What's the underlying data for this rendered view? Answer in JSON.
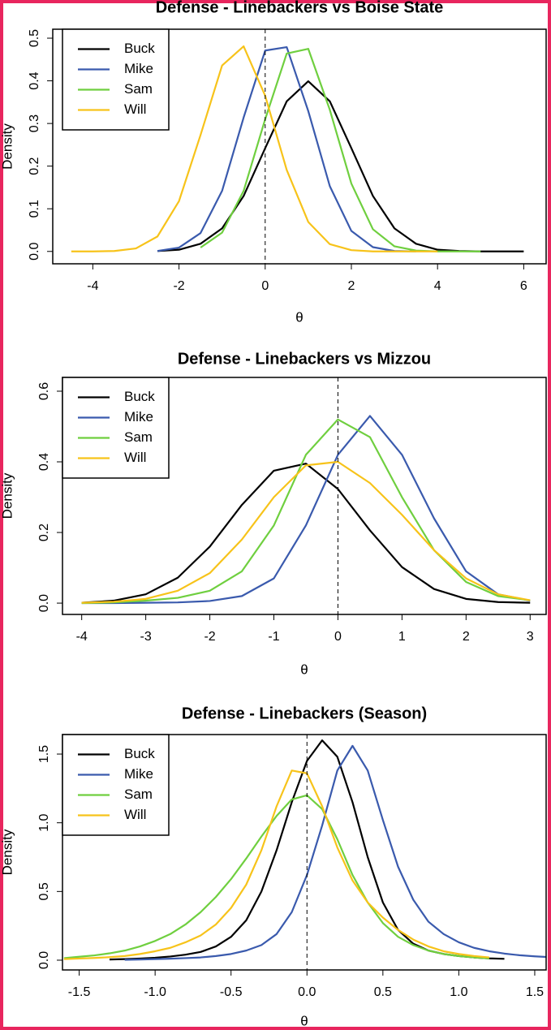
{
  "chart_data": [
    {
      "type": "line",
      "title": "Defense - Linebackers vs Boise State",
      "xlabel": "θ",
      "ylabel": "Density",
      "x": [
        -4.5,
        -4,
        -3.5,
        -3,
        -2.5,
        -2,
        -1.5,
        -1,
        -0.5,
        0,
        0.5,
        1,
        1.5,
        2,
        2.5,
        3,
        3.5,
        4,
        4.5,
        5,
        5.5,
        6
      ],
      "series": [
        {
          "name": "Buck",
          "color": "#000000",
          "values": [
            null,
            null,
            null,
            null,
            0.001,
            0.004,
            0.018,
            0.054,
            0.13,
            0.242,
            0.352,
            0.399,
            0.352,
            0.242,
            0.13,
            0.054,
            0.018,
            0.004,
            0.001,
            0,
            0,
            0
          ]
        },
        {
          "name": "Mike",
          "color": "#3a5aad",
          "values": [
            null,
            null,
            null,
            null,
            0.001,
            0.009,
            0.043,
            0.142,
            0.314,
            0.471,
            0.479,
            0.329,
            0.153,
            0.048,
            0.01,
            0.001,
            0,
            null,
            null,
            null,
            null,
            null
          ]
        },
        {
          "name": "Sam",
          "color": "#6fcf3f",
          "values": [
            null,
            null,
            null,
            null,
            null,
            null,
            0.009,
            0.044,
            0.142,
            0.31,
            0.464,
            0.475,
            0.332,
            0.159,
            0.052,
            0.012,
            0.002,
            0,
            0,
            0,
            null,
            null
          ]
        },
        {
          "name": "Will",
          "color": "#f7c31a",
          "values": [
            0,
            0,
            0.001,
            0.007,
            0.035,
            0.118,
            0.273,
            0.436,
            0.481,
            0.365,
            0.191,
            0.069,
            0.017,
            0.003,
            0,
            0,
            0,
            0,
            null,
            null,
            null,
            null
          ]
        }
      ],
      "xlim": [
        -4.93,
        6.52
      ],
      "ylim": [
        -0.029,
        0.521
      ],
      "xticks": [
        -4,
        -2,
        0,
        2,
        4,
        6
      ],
      "yticks": [
        {
          "value": 0,
          "label": "0.0"
        },
        0.1,
        0.2,
        0.3,
        0.4,
        0.5
      ],
      "vline": 0,
      "legend": "top-left"
    },
    {
      "type": "line",
      "title": "Defense - Linebackers vs Mizzou",
      "xlabel": "θ",
      "ylabel": "Density",
      "x": [
        -4,
        -3.5,
        -3,
        -2.5,
        -2,
        -1.5,
        -1,
        -0.5,
        0,
        0.5,
        1,
        1.5,
        2,
        2.5,
        3
      ],
      "series": [
        {
          "name": "Buck",
          "color": "#000000",
          "values": [
            0.001,
            0.007,
            0.025,
            0.072,
            0.16,
            0.278,
            0.375,
            0.395,
            0.323,
            0.206,
            0.102,
            0.04,
            0.012,
            0.003,
            0.001
          ]
        },
        {
          "name": "Mike",
          "color": "#3a5aad",
          "values": [
            0,
            0,
            0.001,
            0.002,
            0.006,
            0.02,
            0.07,
            0.22,
            0.42,
            0.53,
            0.42,
            0.24,
            0.09,
            0.025,
            0.007
          ]
        },
        {
          "name": "Sam",
          "color": "#6fcf3f",
          "values": [
            0,
            0.002,
            0.007,
            0.015,
            0.035,
            0.09,
            0.22,
            0.42,
            0.52,
            0.47,
            0.3,
            0.15,
            0.06,
            0.02,
            0.008
          ]
        },
        {
          "name": "Will",
          "color": "#f7c31a",
          "values": [
            0.001,
            0.004,
            0.012,
            0.035,
            0.085,
            0.18,
            0.3,
            0.39,
            0.4,
            0.34,
            0.25,
            0.15,
            0.07,
            0.025,
            0.008
          ]
        }
      ],
      "xlim": [
        -4.3,
        3.25
      ],
      "ylim": [
        -0.032,
        0.639
      ],
      "xticks": [
        -4,
        -3,
        -2,
        -1,
        0,
        1,
        2,
        3
      ],
      "yticks": [
        {
          "value": 0,
          "label": "0.0"
        },
        0.2,
        0.4,
        0.6
      ],
      "vline": 0,
      "legend": "top-left"
    },
    {
      "type": "line",
      "title": "Defense - Linebackers (Season)",
      "xlabel": "θ",
      "ylabel": "Density",
      "x": [
        -1.6,
        -1.5,
        -1.4,
        -1.3,
        -1.2,
        -1.1,
        -1.0,
        -0.9,
        -0.8,
        -0.7,
        -0.6,
        -0.5,
        -0.4,
        -0.3,
        -0.2,
        -0.1,
        0,
        0.1,
        0.2,
        0.3,
        0.4,
        0.5,
        0.6,
        0.7,
        0.8,
        0.9,
        1.0,
        1.1,
        1.2,
        1.3,
        1.4,
        1.5,
        1.6
      ],
      "series": [
        {
          "name": "Buck",
          "color": "#000000",
          "values": [
            null,
            null,
            null,
            0.005,
            0.008,
            0.012,
            0.018,
            0.027,
            0.04,
            0.06,
            0.1,
            0.17,
            0.29,
            0.5,
            0.8,
            1.15,
            1.45,
            1.6,
            1.48,
            1.15,
            0.75,
            0.42,
            0.22,
            0.12,
            0.07,
            0.045,
            0.03,
            0.02,
            0.013,
            0.01,
            null,
            null,
            null
          ]
        },
        {
          "name": "Mike",
          "color": "#3a5aad",
          "values": [
            null,
            null,
            null,
            null,
            0.003,
            0.005,
            0.008,
            0.011,
            0.015,
            0.02,
            0.03,
            0.045,
            0.07,
            0.11,
            0.19,
            0.35,
            0.62,
            0.98,
            1.38,
            1.56,
            1.38,
            1.02,
            0.68,
            0.44,
            0.28,
            0.19,
            0.13,
            0.09,
            0.065,
            0.048,
            0.036,
            0.028,
            0.022
          ]
        },
        {
          "name": "Sam",
          "color": "#6fcf3f",
          "values": [
            0.015,
            0.025,
            0.035,
            0.05,
            0.07,
            0.1,
            0.14,
            0.19,
            0.26,
            0.35,
            0.46,
            0.59,
            0.74,
            0.9,
            1.05,
            1.17,
            1.2,
            1.1,
            0.88,
            0.62,
            0.42,
            0.27,
            0.17,
            0.11,
            0.07,
            0.045,
            0.03,
            0.02,
            0.013,
            null,
            null,
            null,
            null
          ]
        },
        {
          "name": "Will",
          "color": "#f7c31a",
          "values": [
            0.008,
            0.012,
            0.016,
            0.022,
            0.03,
            0.045,
            0.065,
            0.09,
            0.13,
            0.18,
            0.26,
            0.38,
            0.55,
            0.8,
            1.12,
            1.38,
            1.36,
            1.12,
            0.82,
            0.58,
            0.42,
            0.31,
            0.22,
            0.15,
            0.1,
            0.065,
            0.045,
            0.03,
            0.02,
            null,
            null,
            null,
            null
          ]
        }
      ],
      "xlim": [
        -1.61,
        1.575
      ],
      "ylim": [
        -0.071,
        1.642
      ],
      "xticks": [
        -1.5,
        {
          "value": -1,
          "label": "-1.0"
        },
        -0.5,
        {
          "value": 0,
          "label": "0.0"
        },
        0.5,
        {
          "value": 1,
          "label": "1.0"
        },
        1.5
      ],
      "yticks": [
        {
          "value": 0,
          "label": "0.0"
        },
        0.5,
        {
          "value": 1,
          "label": "1.0"
        },
        1.5
      ],
      "vline": 0,
      "legend": "top-left"
    }
  ]
}
